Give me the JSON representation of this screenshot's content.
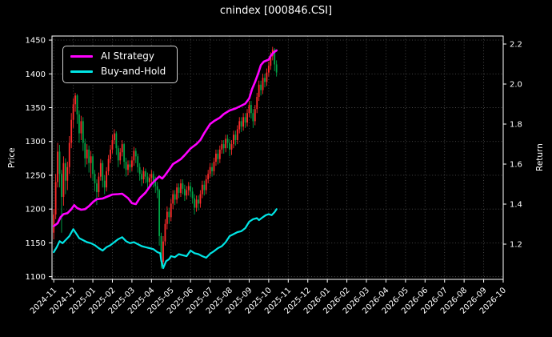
{
  "figure": {
    "background": "#000000",
    "text_color": "#ffffff"
  },
  "chart_data": {
    "type": "candlestick+line",
    "title": "cnindex [000846.CSI]",
    "x_axis": {
      "unit": "months since 2024-11",
      "xlim_months": [
        -0.09,
        23.0
      ],
      "tick_labels": [
        "2024-11",
        "2024-12",
        "2025-01",
        "2025-02",
        "2025-03",
        "2025-04",
        "2025-05",
        "2025-06",
        "2025-07",
        "2025-08",
        "2025-09",
        "2025-10",
        "2025-11",
        "2025-12",
        "2026-01",
        "2026-02",
        "2026-03",
        "2026-04",
        "2026-05",
        "2026-06",
        "2026-07",
        "2026-08",
        "2026-09",
        "2026-10"
      ],
      "tick_rotation_deg": 45
    },
    "left_axis": {
      "label": "Price",
      "ticks": [
        1100,
        1150,
        1200,
        1250,
        1300,
        1350,
        1400,
        1450
      ],
      "ylim": [
        1096,
        1456
      ]
    },
    "right_axis": {
      "label": "Return",
      "tick_labels": [
        "1.2",
        "1.4",
        "1.6",
        "1.8",
        "2.0",
        "2.2"
      ],
      "ticks": [
        1.2,
        1.4,
        1.6,
        1.8,
        2.0,
        2.2
      ],
      "ylim": [
        1.024,
        2.24
      ]
    },
    "grid": {
      "show": true,
      "style": "dotted",
      "color": "#4d4d4d"
    },
    "candles": {
      "note": "daily candles, data ends mid 2025-10; red = up day, green = down day",
      "color_up": "#ff2b2b",
      "color_down": "#00a447",
      "t_start_months": 0.0,
      "t_step_months": 0.1,
      "first_open": 1165,
      "hlc": [
        [
          1200,
          1155,
          1192
        ],
        [
          1252,
          1185,
          1240
        ],
        [
          1298,
          1232,
          1285
        ],
        [
          1295,
          1232,
          1252
        ],
        [
          1258,
          1165,
          1218
        ],
        [
          1278,
          1205,
          1268
        ],
        [
          1275,
          1222,
          1242
        ],
        [
          1270,
          1228,
          1262
        ],
        [
          1308,
          1252,
          1298
        ],
        [
          1342,
          1290,
          1332
        ],
        [
          1364,
          1320,
          1355
        ],
        [
          1372,
          1344,
          1368
        ],
        [
          1370,
          1326,
          1340
        ],
        [
          1346,
          1298,
          1312
        ],
        [
          1338,
          1302,
          1330
        ],
        [
          1336,
          1286,
          1298
        ],
        [
          1304,
          1262,
          1275
        ],
        [
          1296,
          1266,
          1288
        ],
        [
          1294,
          1254,
          1268
        ],
        [
          1286,
          1246,
          1278
        ],
        [
          1282,
          1242,
          1252
        ],
        [
          1258,
          1226,
          1238
        ],
        [
          1244,
          1206,
          1225
        ],
        [
          1254,
          1218,
          1248
        ],
        [
          1274,
          1242,
          1268
        ],
        [
          1272,
          1232,
          1242
        ],
        [
          1250,
          1222,
          1232
        ],
        [
          1262,
          1226,
          1256
        ],
        [
          1280,
          1250,
          1274
        ],
        [
          1295,
          1268,
          1288
        ],
        [
          1310,
          1282,
          1302
        ],
        [
          1318,
          1296,
          1312
        ],
        [
          1315,
          1280,
          1290
        ],
        [
          1294,
          1262,
          1272
        ],
        [
          1290,
          1266,
          1284
        ],
        [
          1302,
          1278,
          1296
        ],
        [
          1298,
          1260,
          1270
        ],
        [
          1276,
          1248,
          1258
        ],
        [
          1272,
          1250,
          1266
        ],
        [
          1272,
          1254,
          1262
        ],
        [
          1278,
          1256,
          1272
        ],
        [
          1292,
          1264,
          1286
        ],
        [
          1290,
          1268,
          1278
        ],
        [
          1282,
          1254,
          1262
        ],
        [
          1268,
          1242,
          1252
        ],
        [
          1258,
          1234,
          1244
        ],
        [
          1262,
          1238,
          1256
        ],
        [
          1260,
          1238,
          1248
        ],
        [
          1254,
          1230,
          1240
        ],
        [
          1252,
          1232,
          1246
        ],
        [
          1258,
          1238,
          1252
        ],
        [
          1256,
          1232,
          1242
        ],
        [
          1248,
          1224,
          1234
        ],
        [
          1240,
          1216,
          1228
        ],
        [
          1230,
          1146,
          1160
        ],
        [
          1165,
          1112,
          1122
        ],
        [
          1160,
          1118,
          1152
        ],
        [
          1185,
          1146,
          1178
        ],
        [
          1204,
          1170,
          1196
        ],
        [
          1202,
          1178,
          1188
        ],
        [
          1215,
          1182,
          1208
        ],
        [
          1228,
          1200,
          1222
        ],
        [
          1228,
          1206,
          1214
        ],
        [
          1238,
          1208,
          1232
        ],
        [
          1238,
          1216,
          1224
        ],
        [
          1244,
          1218,
          1238
        ],
        [
          1244,
          1222,
          1230
        ],
        [
          1236,
          1212,
          1220
        ],
        [
          1234,
          1214,
          1228
        ],
        [
          1240,
          1220,
          1234
        ],
        [
          1240,
          1218,
          1226
        ],
        [
          1232,
          1208,
          1216
        ],
        [
          1222,
          1192,
          1202
        ],
        [
          1220,
          1196,
          1214
        ],
        [
          1220,
          1198,
          1208
        ],
        [
          1228,
          1202,
          1222
        ],
        [
          1242,
          1216,
          1236
        ],
        [
          1242,
          1220,
          1228
        ],
        [
          1250,
          1222,
          1244
        ],
        [
          1258,
          1238,
          1252
        ],
        [
          1268,
          1246,
          1262
        ],
        [
          1268,
          1248,
          1256
        ],
        [
          1276,
          1250,
          1270
        ],
        [
          1288,
          1264,
          1282
        ],
        [
          1288,
          1266,
          1274
        ],
        [
          1294,
          1268,
          1288
        ],
        [
          1302,
          1282,
          1296
        ],
        [
          1302,
          1282,
          1290
        ],
        [
          1310,
          1284,
          1304
        ],
        [
          1310,
          1290,
          1298
        ],
        [
          1304,
          1278,
          1288
        ],
        [
          1302,
          1280,
          1296
        ],
        [
          1316,
          1290,
          1310
        ],
        [
          1316,
          1294,
          1302
        ],
        [
          1324,
          1296,
          1318
        ],
        [
          1336,
          1312,
          1330
        ],
        [
          1336,
          1314,
          1322
        ],
        [
          1342,
          1316,
          1336
        ],
        [
          1342,
          1320,
          1328
        ],
        [
          1348,
          1322,
          1342
        ],
        [
          1360,
          1336,
          1354
        ],
        [
          1360,
          1334,
          1342
        ],
        [
          1348,
          1320,
          1330
        ],
        [
          1354,
          1324,
          1348
        ],
        [
          1372,
          1342,
          1366
        ],
        [
          1390,
          1360,
          1384
        ],
        [
          1390,
          1368,
          1376
        ],
        [
          1400,
          1370,
          1394
        ],
        [
          1400,
          1380,
          1388
        ],
        [
          1408,
          1382,
          1402
        ],
        [
          1418,
          1396,
          1412
        ],
        [
          1432,
          1406,
          1426
        ],
        [
          1440,
          1420,
          1436
        ],
        [
          1438,
          1404,
          1414
        ],
        [
          1420,
          1396,
          1402
        ]
      ]
    },
    "series": [
      {
        "name": "AI Strategy",
        "color": "#ff00ff",
        "axis": "right",
        "points": [
          [
            0,
            1.29
          ],
          [
            0.2,
            1.305
          ],
          [
            0.35,
            1.335
          ],
          [
            0.5,
            1.35
          ],
          [
            0.7,
            1.355
          ],
          [
            0.9,
            1.375
          ],
          [
            1.05,
            1.395
          ],
          [
            1.2,
            1.38
          ],
          [
            1.4,
            1.372
          ],
          [
            1.6,
            1.375
          ],
          [
            1.8,
            1.39
          ],
          [
            2.0,
            1.41
          ],
          [
            2.2,
            1.425
          ],
          [
            2.5,
            1.428
          ],
          [
            2.8,
            1.44
          ],
          [
            3.0,
            1.448
          ],
          [
            3.3,
            1.45
          ],
          [
            3.5,
            1.452
          ],
          [
            3.8,
            1.43
          ],
          [
            4.0,
            1.405
          ],
          [
            4.2,
            1.4
          ],
          [
            4.4,
            1.43
          ],
          [
            4.7,
            1.458
          ],
          [
            5.0,
            1.5
          ],
          [
            5.2,
            1.52
          ],
          [
            5.4,
            1.538
          ],
          [
            5.55,
            1.528
          ],
          [
            5.7,
            1.545
          ],
          [
            5.9,
            1.572
          ],
          [
            6.1,
            1.6
          ],
          [
            6.3,
            1.612
          ],
          [
            6.5,
            1.625
          ],
          [
            6.7,
            1.645
          ],
          [
            7.0,
            1.678
          ],
          [
            7.3,
            1.7
          ],
          [
            7.5,
            1.72
          ],
          [
            7.7,
            1.755
          ],
          [
            8.0,
            1.8
          ],
          [
            8.2,
            1.815
          ],
          [
            8.5,
            1.832
          ],
          [
            8.7,
            1.85
          ],
          [
            9.0,
            1.868
          ],
          [
            9.3,
            1.878
          ],
          [
            9.6,
            1.892
          ],
          [
            9.8,
            1.902
          ],
          [
            10.0,
            1.928
          ],
          [
            10.15,
            1.975
          ],
          [
            10.3,
            2.01
          ],
          [
            10.45,
            2.05
          ],
          [
            10.6,
            2.095
          ],
          [
            10.75,
            2.112
          ],
          [
            10.9,
            2.118
          ],
          [
            11.0,
            2.122
          ],
          [
            11.1,
            2.14
          ],
          [
            11.25,
            2.158
          ],
          [
            11.4,
            2.168
          ]
        ]
      },
      {
        "name": "Buy-and-Hold",
        "color": "#00e5e5",
        "axis": "right",
        "points": [
          [
            0,
            1.16
          ],
          [
            0.15,
            1.185
          ],
          [
            0.3,
            1.215
          ],
          [
            0.45,
            1.205
          ],
          [
            0.6,
            1.22
          ],
          [
            0.8,
            1.24
          ],
          [
            1.0,
            1.275
          ],
          [
            1.1,
            1.26
          ],
          [
            1.3,
            1.23
          ],
          [
            1.5,
            1.22
          ],
          [
            1.7,
            1.21
          ],
          [
            1.9,
            1.205
          ],
          [
            2.1,
            1.195
          ],
          [
            2.3,
            1.18
          ],
          [
            2.5,
            1.168
          ],
          [
            2.7,
            1.185
          ],
          [
            2.9,
            1.195
          ],
          [
            3.1,
            1.21
          ],
          [
            3.3,
            1.225
          ],
          [
            3.5,
            1.235
          ],
          [
            3.7,
            1.215
          ],
          [
            3.9,
            1.205
          ],
          [
            4.1,
            1.21
          ],
          [
            4.3,
            1.2
          ],
          [
            4.5,
            1.19
          ],
          [
            4.7,
            1.185
          ],
          [
            4.9,
            1.18
          ],
          [
            5.1,
            1.175
          ],
          [
            5.3,
            1.16
          ],
          [
            5.45,
            1.155
          ],
          [
            5.5,
            1.12
          ],
          [
            5.6,
            1.08
          ],
          [
            5.75,
            1.115
          ],
          [
            5.9,
            1.125
          ],
          [
            6.0,
            1.14
          ],
          [
            6.2,
            1.135
          ],
          [
            6.4,
            1.15
          ],
          [
            6.6,
            1.145
          ],
          [
            6.8,
            1.14
          ],
          [
            7.0,
            1.168
          ],
          [
            7.2,
            1.155
          ],
          [
            7.4,
            1.15
          ],
          [
            7.6,
            1.14
          ],
          [
            7.8,
            1.132
          ],
          [
            8.0,
            1.152
          ],
          [
            8.2,
            1.165
          ],
          [
            8.4,
            1.18
          ],
          [
            8.6,
            1.19
          ],
          [
            8.8,
            1.21
          ],
          [
            9.0,
            1.24
          ],
          [
            9.2,
            1.25
          ],
          [
            9.4,
            1.26
          ],
          [
            9.6,
            1.265
          ],
          [
            9.8,
            1.28
          ],
          [
            10.0,
            1.312
          ],
          [
            10.2,
            1.325
          ],
          [
            10.4,
            1.33
          ],
          [
            10.5,
            1.32
          ],
          [
            10.7,
            1.335
          ],
          [
            10.85,
            1.345
          ],
          [
            11.0,
            1.35
          ],
          [
            11.15,
            1.345
          ],
          [
            11.3,
            1.36
          ],
          [
            11.4,
            1.375
          ]
        ]
      }
    ],
    "legend": {
      "position": "upper-left"
    }
  }
}
